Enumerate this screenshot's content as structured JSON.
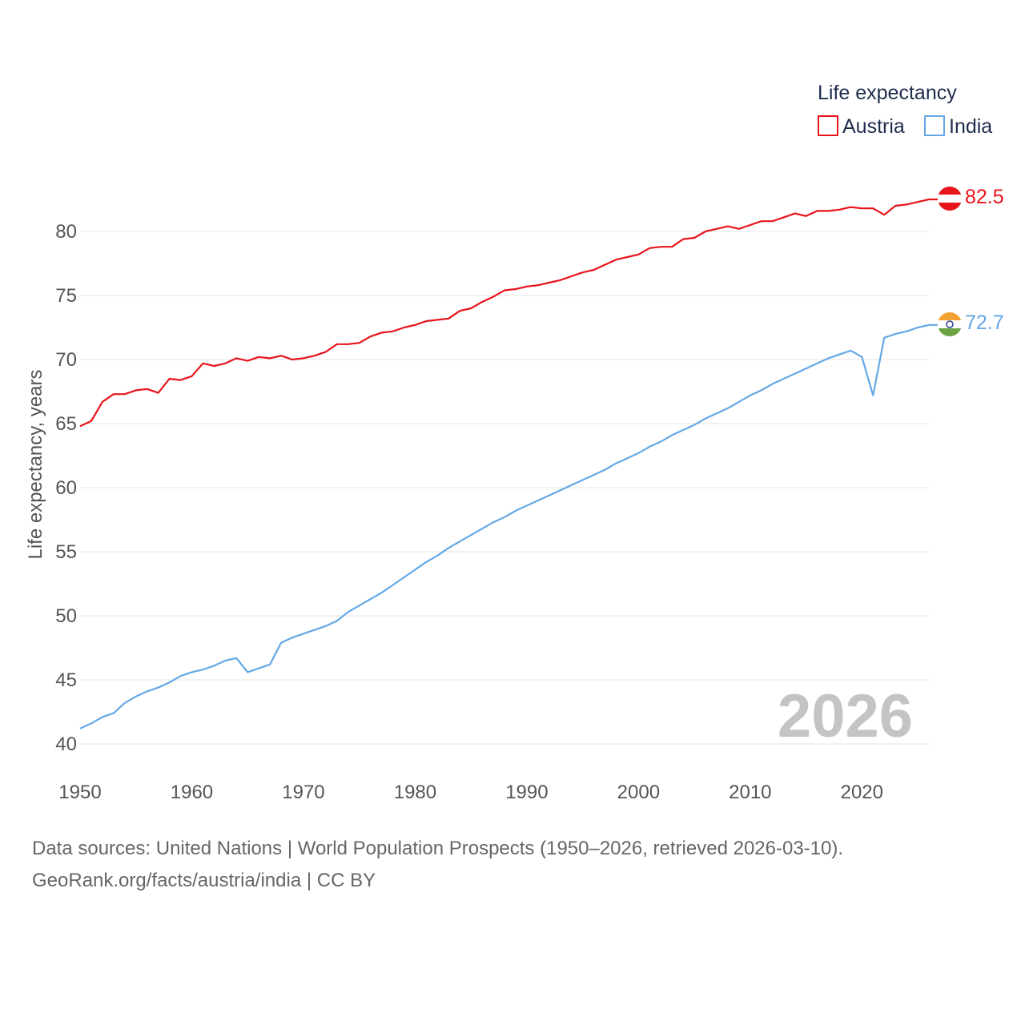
{
  "chart_data": {
    "type": "line",
    "title": "",
    "ylabel": "Life expectancy, years",
    "xlabel": "",
    "xlim": [
      1950,
      2026
    ],
    "ylim": [
      40,
      83
    ],
    "x_ticks": [
      1950,
      1960,
      1970,
      1980,
      1990,
      2000,
      2010,
      2020
    ],
    "y_ticks": [
      40,
      45,
      50,
      55,
      60,
      65,
      70,
      75,
      80
    ],
    "grid": "horizontal",
    "legend_title": "Life expectancy",
    "legend_position": "top-right",
    "year_watermark": "2026",
    "x": [
      1950,
      1951,
      1952,
      1953,
      1954,
      1955,
      1956,
      1957,
      1958,
      1959,
      1960,
      1961,
      1962,
      1963,
      1964,
      1965,
      1966,
      1967,
      1968,
      1969,
      1970,
      1971,
      1972,
      1973,
      1974,
      1975,
      1976,
      1977,
      1978,
      1979,
      1980,
      1981,
      1982,
      1983,
      1984,
      1985,
      1986,
      1987,
      1988,
      1989,
      1990,
      1991,
      1992,
      1993,
      1994,
      1995,
      1996,
      1997,
      1998,
      1999,
      2000,
      2001,
      2002,
      2003,
      2004,
      2005,
      2006,
      2007,
      2008,
      2009,
      2010,
      2011,
      2012,
      2013,
      2014,
      2015,
      2016,
      2017,
      2018,
      2019,
      2020,
      2021,
      2022,
      2023,
      2024,
      2025,
      2026
    ],
    "series": [
      {
        "name": "Austria",
        "color": "#e8141b",
        "end_label": "82.5",
        "flag": "austria-flag",
        "values": [
          64.8,
          65.2,
          66.7,
          67.3,
          67.3,
          67.6,
          67.7,
          67.4,
          68.5,
          68.4,
          68.7,
          69.7,
          69.5,
          69.7,
          70.1,
          69.9,
          70.2,
          70.1,
          70.3,
          70.0,
          70.1,
          70.3,
          70.6,
          71.2,
          71.2,
          71.3,
          71.8,
          72.1,
          72.2,
          72.5,
          72.7,
          73.0,
          73.1,
          73.2,
          73.8,
          74.0,
          74.5,
          74.9,
          75.4,
          75.5,
          75.7,
          75.8,
          76.0,
          76.2,
          76.5,
          76.8,
          77.0,
          77.4,
          77.8,
          78.0,
          78.2,
          78.7,
          78.8,
          78.8,
          79.4,
          79.5,
          80.0,
          80.2,
          80.4,
          80.2,
          80.5,
          80.8,
          80.8,
          81.1,
          81.4,
          81.2,
          81.6,
          81.6,
          81.7,
          81.9,
          81.8,
          81.8,
          81.3,
          82.0,
          82.1,
          82.3,
          82.5
        ]
      },
      {
        "name": "India",
        "color": "#64a8e6",
        "end_label": "72.7",
        "flag": "india-flag",
        "values": [
          41.2,
          41.6,
          42.1,
          42.4,
          43.2,
          43.7,
          44.1,
          44.4,
          44.8,
          45.3,
          45.6,
          45.8,
          46.1,
          46.5,
          46.7,
          45.6,
          45.9,
          46.2,
          47.9,
          48.3,
          48.6,
          48.9,
          49.2,
          49.6,
          50.3,
          50.8,
          51.3,
          51.8,
          52.4,
          53.0,
          53.6,
          54.2,
          54.7,
          55.3,
          55.8,
          56.3,
          56.8,
          57.3,
          57.7,
          58.2,
          58.6,
          59.0,
          59.4,
          59.8,
          60.2,
          60.6,
          61.0,
          61.4,
          61.9,
          62.3,
          62.7,
          63.2,
          63.6,
          64.1,
          64.5,
          64.9,
          65.4,
          65.8,
          66.2,
          66.7,
          67.2,
          67.6,
          68.1,
          68.5,
          68.9,
          69.3,
          69.7,
          70.1,
          70.4,
          70.7,
          70.2,
          67.2,
          71.7,
          72.0,
          72.2,
          72.5,
          72.7
        ]
      }
    ]
  },
  "footer": {
    "line1": "Data sources: United Nations | World Population Prospects (1950–2026, retrieved 2026-03-10).",
    "line2": "GeoRank.org/facts/austria/india | CC BY"
  }
}
